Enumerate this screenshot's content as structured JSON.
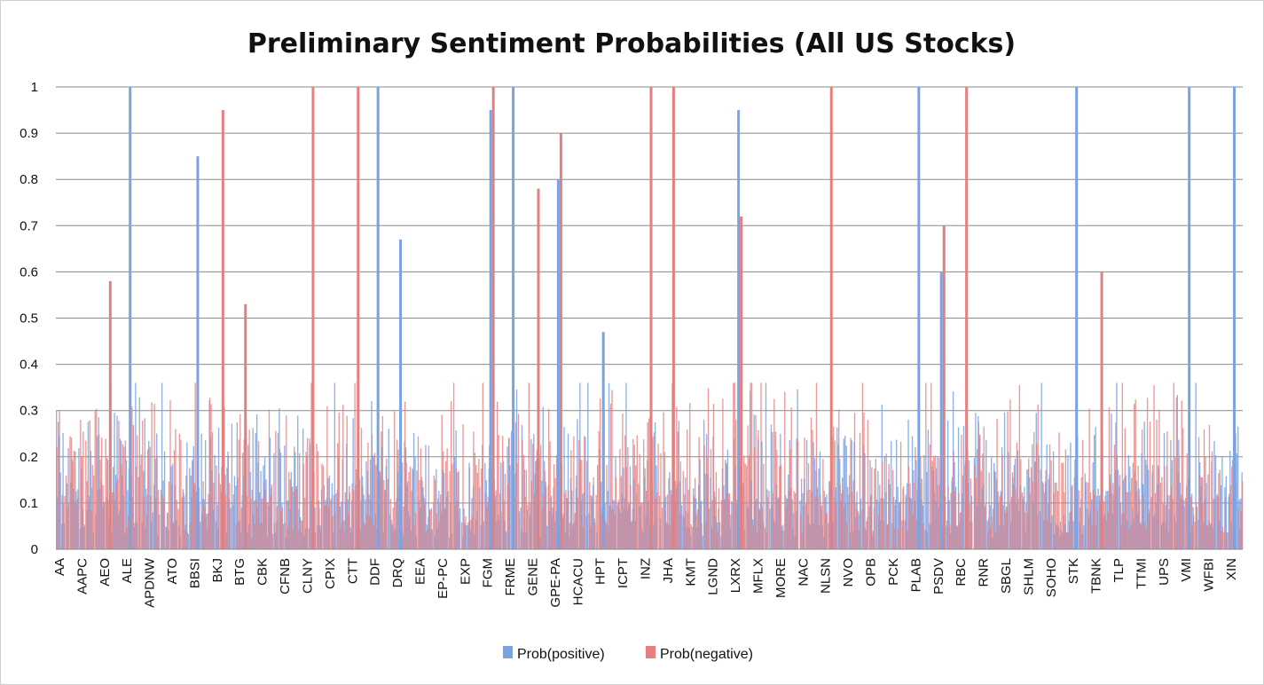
{
  "chart_data": {
    "type": "bar",
    "title": "Preliminary Sentiment Probabilities (All US Stocks)",
    "xlabel": "",
    "ylabel": "",
    "ylim": [
      0,
      1
    ],
    "yticks": [
      0,
      0.1,
      0.2,
      0.3,
      0.4,
      0.5,
      0.6,
      0.7,
      0.8,
      0.9,
      1
    ],
    "grid": true,
    "legend_position": "bottom",
    "tick_labels": [
      "AA",
      "AAPC",
      "AEO",
      "ALE",
      "APDNW",
      "ATO",
      "BBSI",
      "BKJ",
      "BTG",
      "CBK",
      "CFNB",
      "CLNY",
      "CPIX",
      "CTT",
      "DDF",
      "DRQ",
      "EEA",
      "EP-PC",
      "EXP",
      "FGM",
      "FRME",
      "GENE",
      "GPE-PA",
      "HCACU",
      "HPT",
      "ICPT",
      "INZ",
      "JHA",
      "KMT",
      "LGND",
      "LXRX",
      "MFLX",
      "MORE",
      "NAC",
      "NLSN",
      "NVO",
      "OPB",
      "PCK",
      "PLAB",
      "PSDV",
      "RBC",
      "RNR",
      "SBGL",
      "SHLM",
      "SOHO",
      "STK",
      "TBNK",
      "TLP",
      "TTMI",
      "UPS",
      "VMI",
      "WFBI",
      "XIN"
    ],
    "series": [
      {
        "name": "Prob(positive)",
        "color": "#7aa3e5",
        "peaks": [
          {
            "label": "ALE",
            "value": 1.0
          },
          {
            "label": "BBSI",
            "value": 0.85
          },
          {
            "label": "DDF",
            "value": 1.0
          },
          {
            "label": "DRQ",
            "value": 0.67
          },
          {
            "label": "FGM",
            "value": 0.95
          },
          {
            "label": "FRME",
            "value": 1.0
          },
          {
            "label": "GPE-PA",
            "value": 0.8
          },
          {
            "label": "HPT",
            "value": 0.47
          },
          {
            "label": "LXRX",
            "value": 0.95
          },
          {
            "label": "PLAB",
            "value": 1.0
          },
          {
            "label": "PSDV",
            "value": 0.6
          },
          {
            "label": "STK",
            "value": 1.0
          },
          {
            "label": "VMI",
            "value": 1.0
          },
          {
            "label": "XIN",
            "value": 1.0
          }
        ]
      },
      {
        "name": "Prob(negative)",
        "color": "#e57f7f",
        "peaks": [
          {
            "label": "AEO",
            "value": 0.58
          },
          {
            "label": "BKJ",
            "value": 0.95
          },
          {
            "label": "BTG",
            "value": 0.53
          },
          {
            "label": "CLNY",
            "value": 1.0
          },
          {
            "label": "CTT",
            "value": 1.0
          },
          {
            "label": "FGM",
            "value": 1.0
          },
          {
            "label": "GENE",
            "value": 0.78
          },
          {
            "label": "GPE-PA",
            "value": 0.9
          },
          {
            "label": "INZ",
            "value": 1.0
          },
          {
            "label": "JHA",
            "value": 1.0
          },
          {
            "label": "LXRX",
            "value": 0.72
          },
          {
            "label": "NLSN",
            "value": 1.0
          },
          {
            "label": "PSDV",
            "value": 0.7
          },
          {
            "label": "RBC",
            "value": 1.0
          },
          {
            "label": "TBNK",
            "value": 0.6
          }
        ]
      }
    ]
  }
}
